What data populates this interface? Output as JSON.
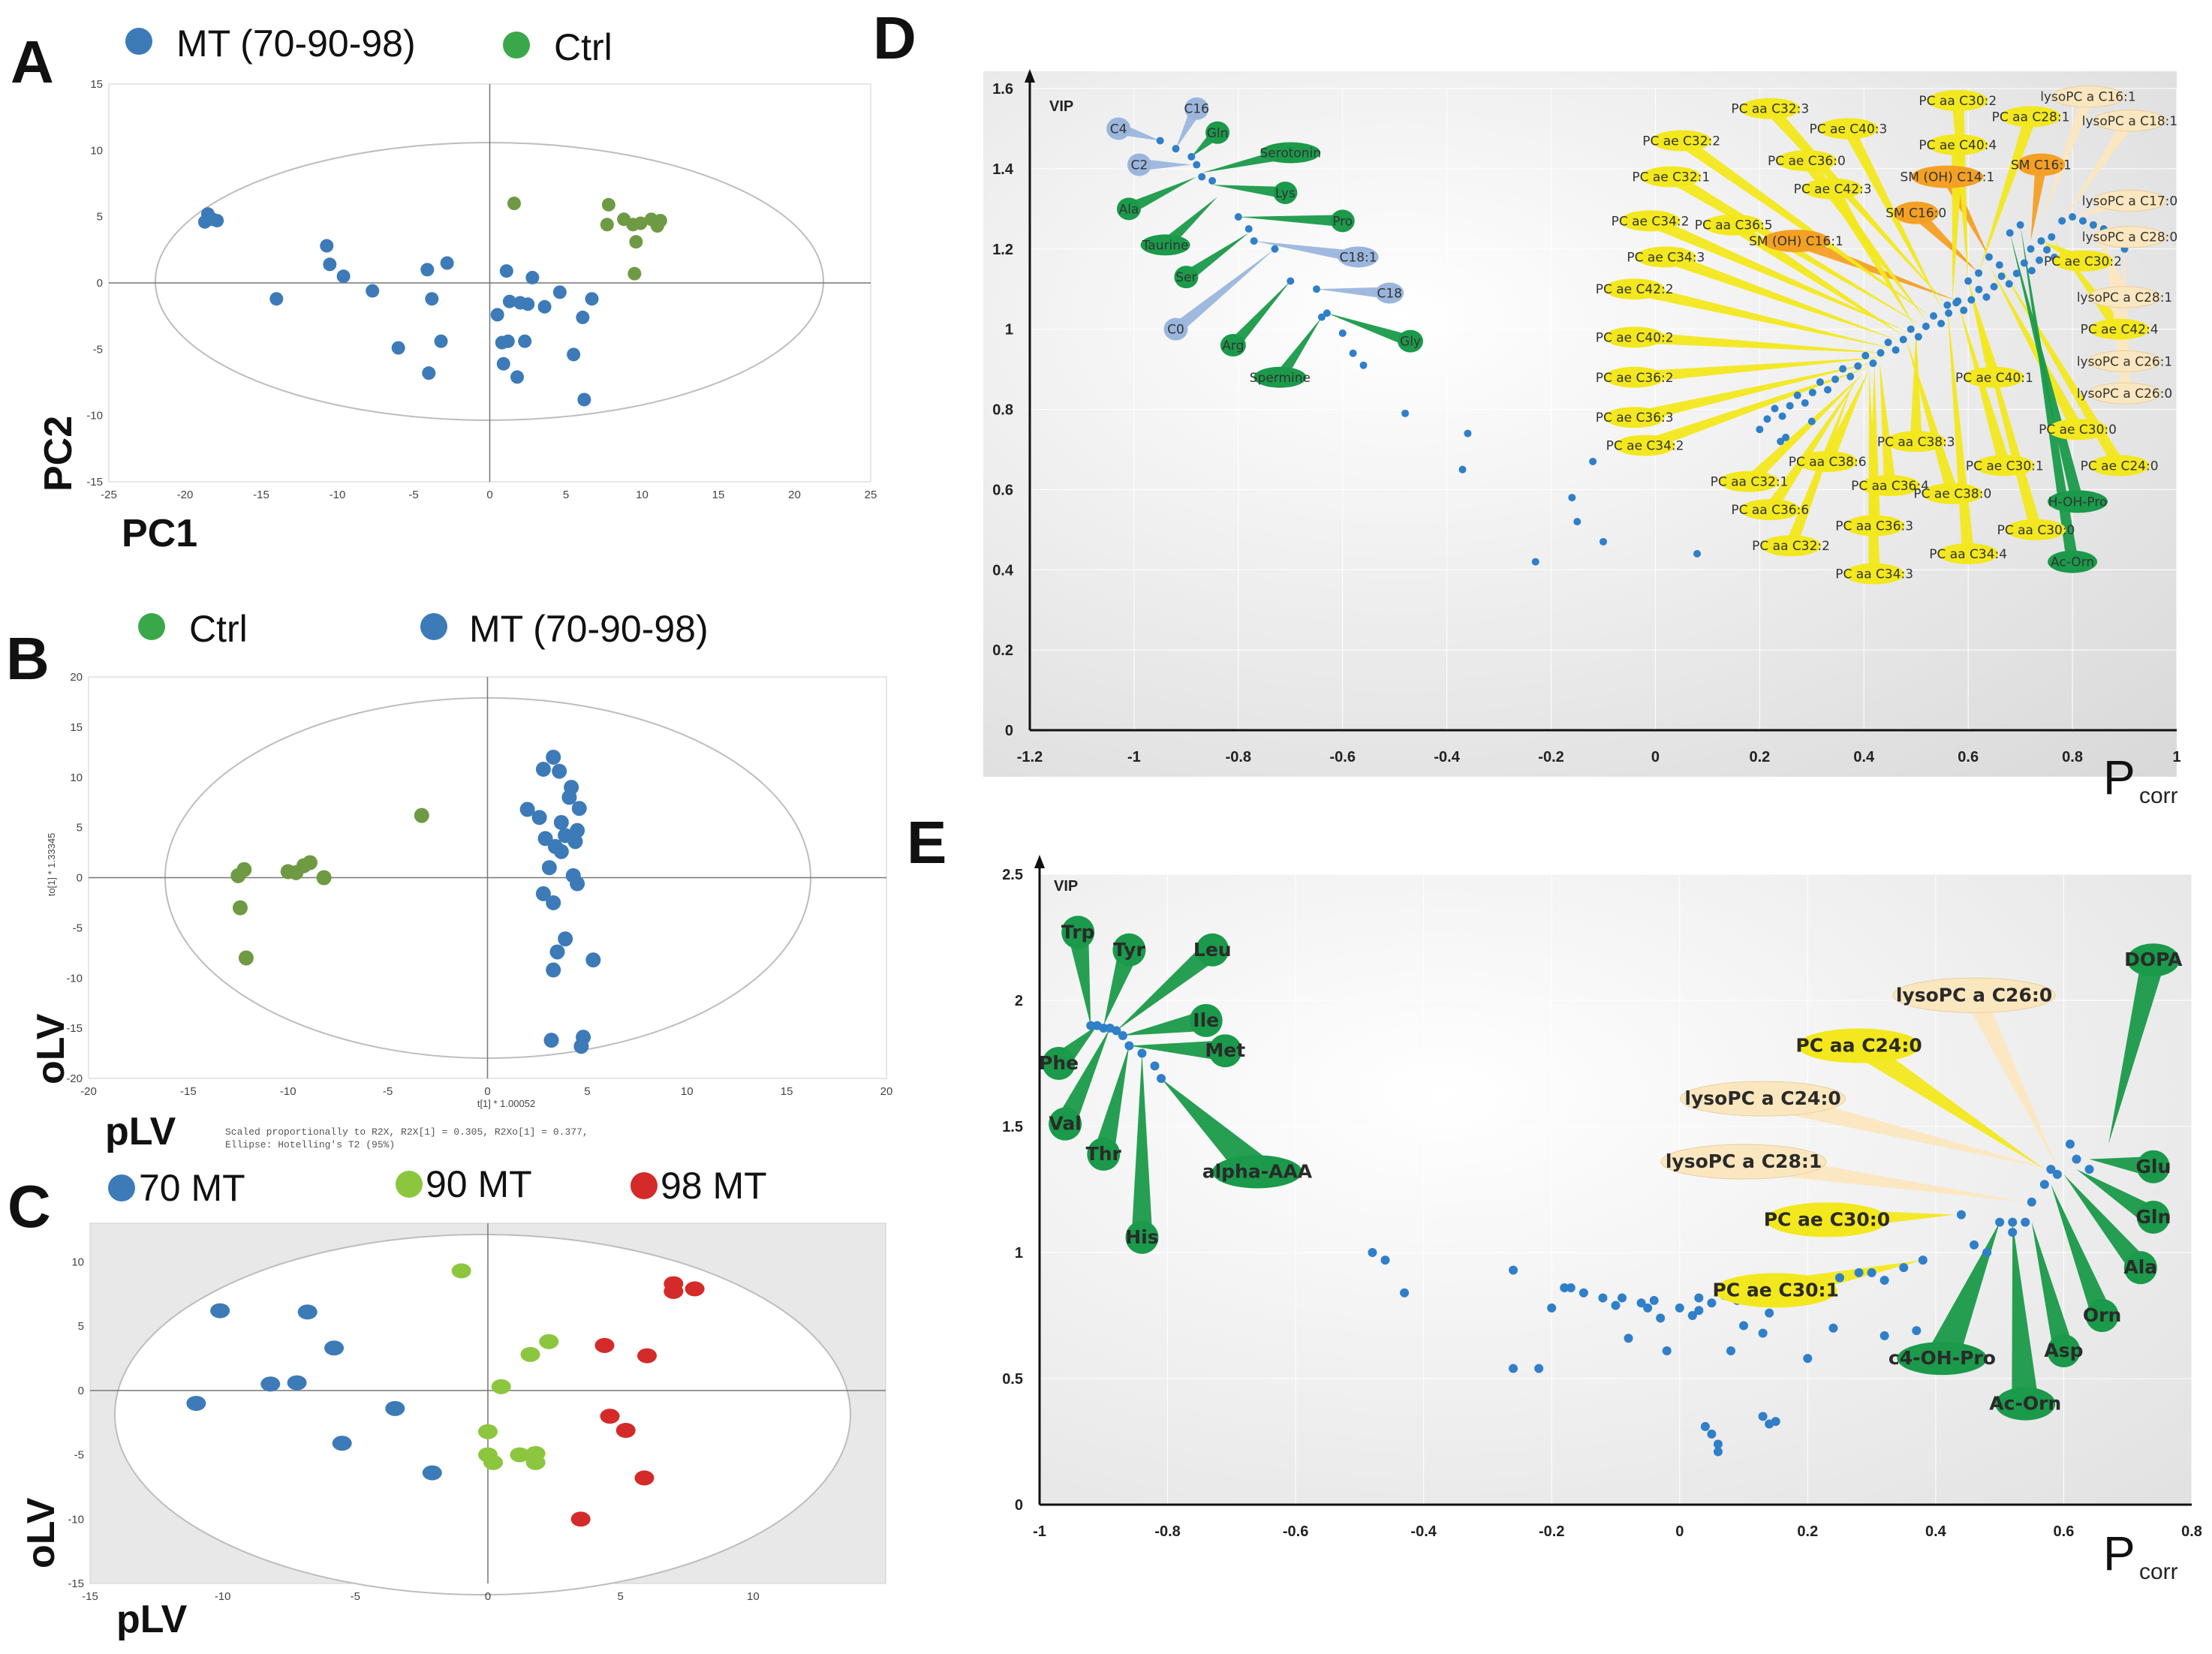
{
  "panels": {
    "A": "A",
    "B": "B",
    "C": "C",
    "D": "D",
    "E": "E"
  },
  "colors": {
    "blue": "#3d7ab8",
    "green": "#3aa84a",
    "olive": "#6f9a44",
    "lightgreen": "#8cc63f",
    "red": "#d42a2a",
    "yellow": "#f2e81d",
    "orange": "#f4a024",
    "cream": "#fbe7bf",
    "bubblegreen": "#1a9a4a",
    "bubbleblue": "#9bb6dd"
  },
  "chart_data": [
    {
      "id": "A",
      "type": "scatter",
      "xlabel": "PC1",
      "ylabel": "PC2",
      "xlim": [
        -25,
        25
      ],
      "ylim": [
        -15,
        15
      ],
      "xticks": [
        "-25",
        "-20",
        "-15",
        "-10",
        "-5",
        "0",
        "5",
        "10",
        "15",
        "20",
        "25"
      ],
      "yticks": [
        "15",
        "10",
        "5",
        "0",
        "-5",
        "-10",
        "-15"
      ],
      "legend": [
        "MT (70-90-98)",
        "Ctrl"
      ],
      "series": [
        {
          "name": "MT (70-90-98)",
          "color": "blue",
          "x": [
            -18.5,
            -18.2,
            -18.7,
            -17.9,
            -14,
            -10.7,
            -10.5,
            -9.6,
            -7.7,
            -6,
            -4.1,
            -3.8,
            -3.2,
            -2.8,
            -4,
            1.1,
            1.3,
            2.5,
            2,
            2.8,
            3.6,
            0.5,
            0.8,
            1.2,
            2.3,
            0.9,
            1.8,
            5.5,
            6.2,
            6.1,
            6.7,
            4.6
          ],
          "y": [
            5.2,
            4.8,
            4.6,
            4.7,
            -1.2,
            2.8,
            1.4,
            0.5,
            -0.6,
            -4.9,
            1,
            -1.2,
            -4.4,
            1.5,
            -6.8,
            0.9,
            -1.4,
            -1.6,
            -1.5,
            0.4,
            -1.8,
            -2.4,
            -4.5,
            -4.4,
            -4.4,
            -6.1,
            -7.1,
            -5.4,
            -8.8,
            -2.6,
            -1.2,
            -0.7
          ]
        },
        {
          "name": "Ctrl",
          "color": "olive",
          "x": [
            1.6,
            7.8,
            7.7,
            8.8,
            9.4,
            9.9,
            10.6,
            11.2,
            11,
            9.6,
            9.5
          ],
          "y": [
            6,
            5.9,
            4.4,
            4.8,
            4.4,
            4.5,
            4.8,
            4.7,
            4.3,
            3.1,
            0.7
          ]
        }
      ]
    },
    {
      "id": "B",
      "type": "scatter",
      "xlabel": "pLV",
      "ylabel": "oLV",
      "inner_xlabel": "t[1] * 1.00052",
      "inner_ylabel": "to[1] * 1.33345",
      "note_line1": "Scaled proportionally to R2X, R2X[1] = 0.305, R2Xo[1] = 0.377,",
      "note_line2": "Ellipse: Hotelling's T2 (95%)",
      "xlim": [
        -20,
        20
      ],
      "ylim": [
        -20,
        20
      ],
      "xticks": [
        "-20",
        "-15",
        "-10",
        "-5",
        "0",
        "5",
        "10",
        "15",
        "20"
      ],
      "yticks": [
        "20",
        "15",
        "10",
        "5",
        "0",
        "-5",
        "-10",
        "-15",
        "-20"
      ],
      "legend": [
        "Ctrl",
        "MT (70-90-98)"
      ],
      "series": [
        {
          "name": "Ctrl",
          "color": "olive",
          "x": [
            -12.5,
            -12.2,
            -10,
            -9.6,
            -9.2,
            -8.9,
            -8.2,
            -12.4,
            -12.1,
            -3.3
          ],
          "y": [
            0.2,
            0.8,
            0.6,
            0.5,
            1.2,
            1.5,
            0,
            -3,
            -8,
            6.2
          ]
        },
        {
          "name": "MT (70-90-98)",
          "color": "blue",
          "x": [
            3.3,
            2.8,
            3.6,
            4.2,
            4.1,
            4.6,
            3.7,
            4.5,
            3.9,
            2,
            2.6,
            2.9,
            3.4,
            3.7,
            4.4,
            3.1,
            4.3,
            4.5,
            2.8,
            3.3,
            3.9,
            5.3,
            3.3,
            3.5,
            4.8,
            3.2,
            4.7
          ],
          "y": [
            12,
            10.8,
            10.6,
            9,
            8,
            6.9,
            5.5,
            4.7,
            4.2,
            6.8,
            6,
            3.9,
            3.1,
            2.6,
            3.6,
            1,
            0.2,
            -0.6,
            -1.6,
            -2.5,
            -6.1,
            -8.2,
            -9.2,
            -7.4,
            -15.9,
            -16.2,
            -16.8
          ]
        }
      ]
    },
    {
      "id": "C",
      "type": "scatter",
      "xlabel": "pLV",
      "ylabel": "oLV",
      "xlim": [
        -15,
        15
      ],
      "ylim": [
        -15,
        13
      ],
      "xticks": [
        "-15",
        "-10",
        "-5",
        "0",
        "5",
        "10"
      ],
      "yticks": [
        "10",
        "5",
        "0",
        "-5",
        "-10",
        "-15"
      ],
      "legend": [
        "70 MT",
        "90 MT",
        "98 MT"
      ],
      "series": [
        {
          "name": "70 MT",
          "color": "blue",
          "x": [
            -10.1,
            -6.8,
            -5.8,
            -8.2,
            -7.2,
            -11,
            -3.5,
            -5.5,
            -2.1
          ],
          "y": [
            6.2,
            6.1,
            3.3,
            0.5,
            0.6,
            -1,
            -1.4,
            -4.1,
            -6.4
          ]
        },
        {
          "name": "90 MT",
          "color": "lightgreen",
          "x": [
            -1,
            2.3,
            1.6,
            0.5,
            0,
            0,
            0.2,
            1.2,
            1.8,
            1.8
          ],
          "y": [
            9.3,
            3.8,
            2.8,
            0.3,
            -3.2,
            -5,
            -5.6,
            -5,
            -4.9,
            -5.6
          ]
        },
        {
          "name": "98 MT",
          "color": "red",
          "x": [
            7,
            7,
            7.8,
            4.4,
            6,
            4.6,
            5.2,
            5.9,
            3.5
          ],
          "y": [
            8.3,
            7.7,
            7.9,
            3.5,
            2.7,
            -2,
            -3.1,
            -6.8,
            -10
          ]
        }
      ]
    },
    {
      "id": "D",
      "type": "scatter",
      "xlabel": "P",
      "xlabel_sub": "corr",
      "ylabel": "VIP",
      "xlim": [
        -1.2,
        1
      ],
      "ylim": [
        0,
        1.6
      ],
      "xticks": [
        "-1.2",
        "-1",
        "-0.8",
        "-0.6",
        "-0.4",
        "-0.2",
        "0",
        "0.2",
        "0.4",
        "0.6",
        "0.8",
        "1"
      ],
      "yticks": [
        "0",
        "0.2",
        "0.4",
        "0.6",
        "0.8",
        "1",
        "1.2",
        "1.4",
        "1.6"
      ],
      "labels_green": [
        "Gln",
        "Serotonin",
        "Ala",
        "Lys",
        "Taurine",
        "Pro",
        "Ser",
        "Arg",
        "Spermine",
        "Gly",
        "H-OH-Pro",
        "Ac-Orn"
      ],
      "labels_blue": [
        "C4",
        "C16",
        "C2",
        "C18:1",
        "C18",
        "C0"
      ],
      "labels_orange": [
        "SM C16:1",
        "SM (OH) C14:1",
        "SM C16:0",
        "SM (OH) C16:1"
      ],
      "labels_cream": [
        "lysoPC a C16:1",
        "lysoPC a C18:1",
        "lysoPC a C17:0",
        "lysoPC a C28:0",
        "lysoPC a C28:1",
        "lysoPC a C26:1",
        "lysoPC a C26:0"
      ],
      "labels_yellow": [
        "PC aa C32:3",
        "PC aa C30:2",
        "PC aa C28:1",
        "PC ae C40:3",
        "PC ae C32:2",
        "PC ae C40:4",
        "PC ae C36:0",
        "PC ae C32:1",
        "PC ae C42:3",
        "PC ae C34:2",
        "PC aa C36:5",
        "PC ae C34:3",
        "PC ae C42:2",
        "PC ae C30:2",
        "PC ae C42:4",
        "PC ae C40:2",
        "PC ae C36:2",
        "PC ae C40:1",
        "PC ae C36:3",
        "PC ae C34:2",
        "PC ae C30:0",
        "PC aa C38:3",
        "PC aa C38:6",
        "PC ae C30:1",
        "PC ae C24:0",
        "PC aa C32:1",
        "PC aa C36:4",
        "PC ae C38:0",
        "PC aa C36:6",
        "PC aa C36:3",
        "PC aa C30:0",
        "PC aa C32:2",
        "PC aa C34:4",
        "PC aa C34:3"
      ]
    },
    {
      "id": "E",
      "type": "scatter",
      "xlabel": "P",
      "xlabel_sub": "corr",
      "ylabel": "VIP",
      "xlim": [
        -1,
        0.8
      ],
      "ylim": [
        0,
        2.5
      ],
      "xticks": [
        "-1",
        "-0.8",
        "-0.6",
        "-0.4",
        "-0.2",
        "0",
        "0.2",
        "0.4",
        "0.6",
        "0.8"
      ],
      "yticks": [
        "0",
        "0.5",
        "1",
        "1.5",
        "2",
        "2.5"
      ],
      "labels_green": [
        "Trp",
        "Tyr",
        "Leu",
        "Ile",
        "Met",
        "Phe",
        "Val",
        "Thr",
        "His",
        "alpha-AAA",
        "DOPA",
        "Glu",
        "Gln",
        "Ala",
        "Orn",
        "Asp",
        "c4-OH-Pro",
        "Ac-Orn"
      ],
      "labels_cream": [
        "lysoPC a C26:0",
        "lysoPC a C24:0",
        "lysoPC a C28:1"
      ],
      "labels_yellow": [
        "PC aa C24:0",
        "PC ae C30:0",
        "PC ae C30:1"
      ]
    }
  ]
}
